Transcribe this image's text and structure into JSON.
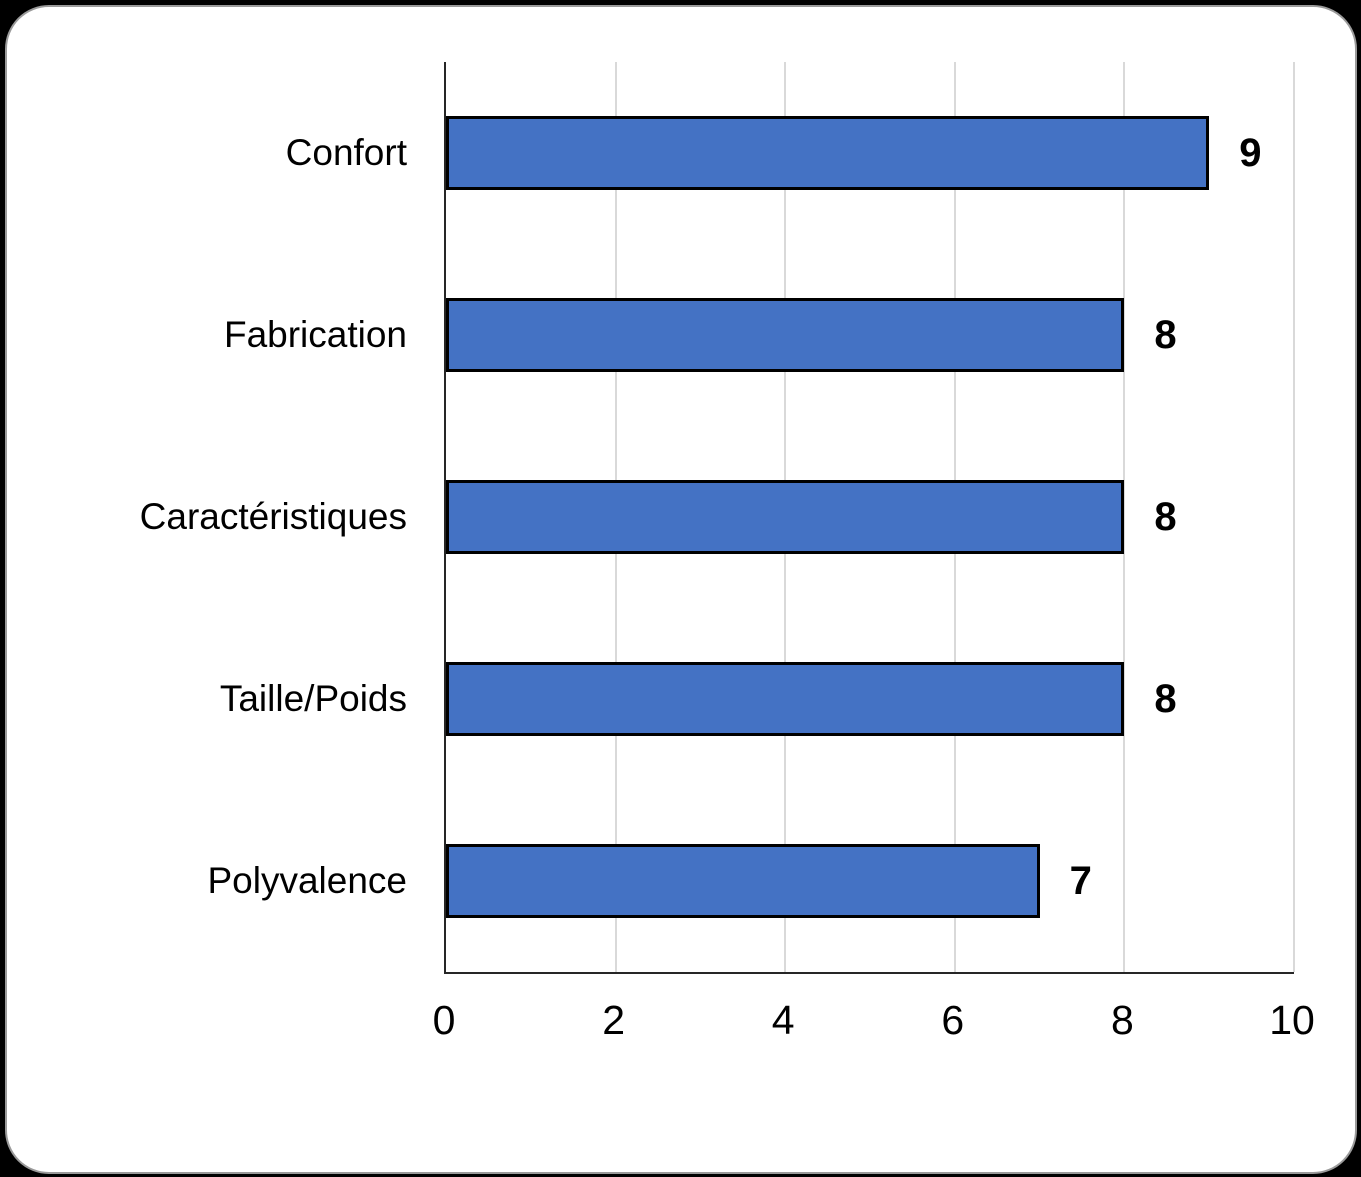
{
  "chart_data": {
    "type": "bar",
    "orientation": "horizontal",
    "title": "",
    "xlabel": "",
    "ylabel": "",
    "categories": [
      "Confort",
      "Fabrication",
      "Caractéristiques",
      "Taille/Poids",
      "Polyvalence"
    ],
    "values": [
      9,
      8,
      8,
      8,
      7
    ],
    "data_labels": [
      "9",
      "8",
      "8",
      "8",
      "7"
    ],
    "xlim": [
      0,
      10
    ],
    "x_ticks": [
      "0",
      "2",
      "4",
      "6",
      "8",
      "10"
    ],
    "x_tick_values": [
      0,
      2,
      4,
      6,
      8,
      10
    ],
    "grid": "vertical-only",
    "legend": "none",
    "colors": {
      "bar_fill": "#4472c4",
      "bar_border": "#000000",
      "gridline": "#d9d9d9",
      "axis_line": "#262626",
      "text": "#000000",
      "card_background": "#ffffff",
      "page_background": "#000000",
      "card_border": "#9a9a9a"
    }
  }
}
